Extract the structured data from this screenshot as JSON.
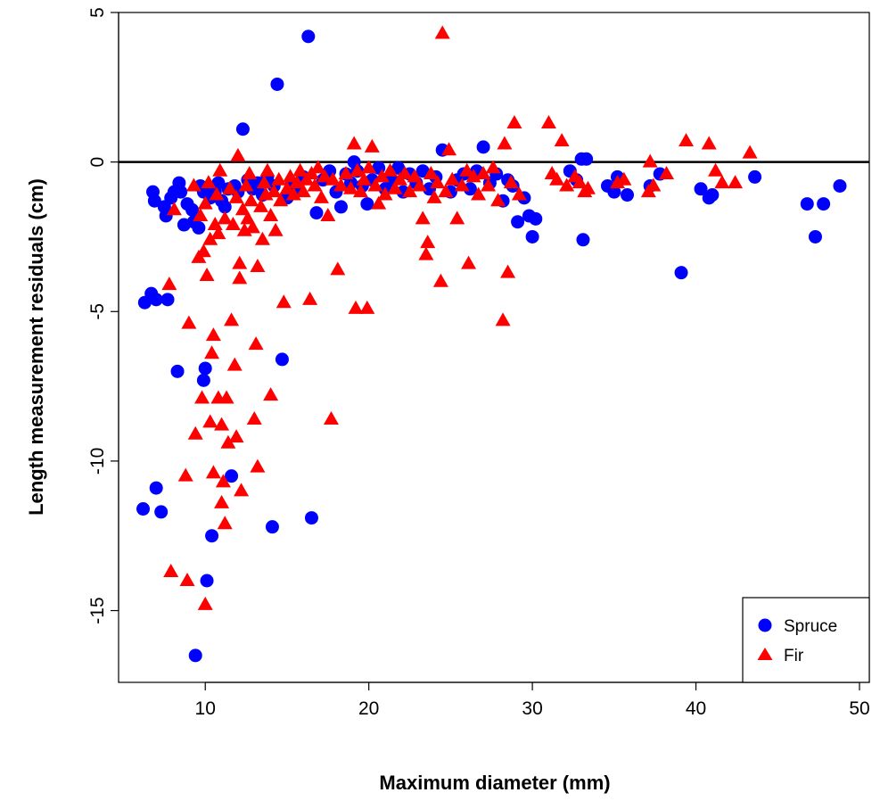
{
  "chart_data": {
    "type": "scatter",
    "xlabel": "Maximum diameter (mm)",
    "ylabel": "Length measurement residuals (cm)",
    "xlim": [
      4.7,
      50.6
    ],
    "ylim": [
      -17.4,
      5.0
    ],
    "xticks": [
      10,
      20,
      30,
      40,
      50
    ],
    "yticks": [
      5,
      0,
      -5,
      -10,
      -15
    ],
    "xtick_labels": [
      "10",
      "20",
      "30",
      "40",
      "50"
    ],
    "ytick_labels": [
      "5",
      "0",
      "-5",
      "-10",
      "-15"
    ],
    "reference_line": {
      "y": 0,
      "color": "#000000"
    },
    "legend": {
      "position": "bottom-right"
    },
    "series": [
      {
        "name": "Spruce",
        "marker": "circle",
        "color": "#0000ff",
        "points": [
          [
            6.2,
            -11.6
          ],
          [
            6.3,
            -4.7
          ],
          [
            6.7,
            -4.4
          ],
          [
            6.8,
            -1.0
          ],
          [
            6.9,
            -1.3
          ],
          [
            7.0,
            -4.6
          ],
          [
            7.0,
            -10.9
          ],
          [
            7.3,
            -11.7
          ],
          [
            7.5,
            -1.5
          ],
          [
            7.6,
            -1.8
          ],
          [
            7.7,
            -4.6
          ],
          [
            7.9,
            -1.2
          ],
          [
            8.1,
            -1.0
          ],
          [
            8.3,
            -7.0
          ],
          [
            8.4,
            -0.7
          ],
          [
            8.5,
            -1.0
          ],
          [
            8.7,
            -2.1
          ],
          [
            8.9,
            -1.4
          ],
          [
            9.2,
            -1.6
          ],
          [
            9.3,
            -2.0
          ],
          [
            9.4,
            -16.5
          ],
          [
            9.6,
            -2.2
          ],
          [
            9.7,
            -0.8
          ],
          [
            9.9,
            -1.0
          ],
          [
            9.9,
            -7.3
          ],
          [
            10.0,
            -6.9
          ],
          [
            10.1,
            -14.0
          ],
          [
            10.3,
            -1.2
          ],
          [
            10.4,
            -12.5
          ],
          [
            10.6,
            -1.0
          ],
          [
            10.8,
            -0.7
          ],
          [
            11.0,
            -1.3
          ],
          [
            11.2,
            -1.5
          ],
          [
            11.4,
            -0.9
          ],
          [
            11.6,
            -10.5
          ],
          [
            11.8,
            -0.8
          ],
          [
            12.0,
            -1.0
          ],
          [
            12.3,
            1.1
          ],
          [
            12.6,
            -0.6
          ],
          [
            12.9,
            -0.9
          ],
          [
            13.2,
            -0.7
          ],
          [
            13.5,
            -1.1
          ],
          [
            13.8,
            -0.5
          ],
          [
            14.1,
            -12.2
          ],
          [
            14.2,
            -0.8
          ],
          [
            14.4,
            2.6
          ],
          [
            14.7,
            -6.6
          ],
          [
            15.0,
            -1.2
          ],
          [
            15.3,
            -0.7
          ],
          [
            15.7,
            -0.9
          ],
          [
            16.0,
            -0.5
          ],
          [
            16.3,
            4.2
          ],
          [
            16.5,
            -11.9
          ],
          [
            16.8,
            -1.7
          ],
          [
            17.2,
            -0.6
          ],
          [
            17.6,
            -0.3
          ],
          [
            18.0,
            -1.0
          ],
          [
            18.3,
            -1.5
          ],
          [
            18.6,
            -0.4
          ],
          [
            18.9,
            -0.7
          ],
          [
            19.1,
            0.0
          ],
          [
            19.3,
            -0.3
          ],
          [
            19.6,
            -0.8
          ],
          [
            19.9,
            -1.4
          ],
          [
            20.2,
            -0.6
          ],
          [
            20.6,
            -0.2
          ],
          [
            21.0,
            -0.9
          ],
          [
            21.4,
            -0.6
          ],
          [
            21.8,
            -0.2
          ],
          [
            22.1,
            -1.0
          ],
          [
            22.5,
            -0.4
          ],
          [
            22.9,
            -0.7
          ],
          [
            23.3,
            -0.3
          ],
          [
            23.7,
            -0.9
          ],
          [
            24.1,
            -0.5
          ],
          [
            24.5,
            0.4
          ],
          [
            25.0,
            -1.0
          ],
          [
            25.4,
            -0.6
          ],
          [
            25.8,
            -0.4
          ],
          [
            26.2,
            -0.9
          ],
          [
            26.6,
            -0.3
          ],
          [
            27.0,
            0.5
          ],
          [
            27.4,
            -0.7
          ],
          [
            27.8,
            -0.4
          ],
          [
            28.2,
            -1.3
          ],
          [
            28.5,
            -0.6
          ],
          [
            28.8,
            -0.8
          ],
          [
            29.1,
            -2.0
          ],
          [
            29.5,
            -1.2
          ],
          [
            29.8,
            -1.8
          ],
          [
            30.0,
            -2.5
          ],
          [
            30.2,
            -1.9
          ],
          [
            32.3,
            -0.3
          ],
          [
            32.7,
            -0.6
          ],
          [
            33.0,
            0.1
          ],
          [
            33.1,
            -2.6
          ],
          [
            33.3,
            0.1
          ],
          [
            34.6,
            -0.8
          ],
          [
            35.0,
            -1.0
          ],
          [
            35.2,
            -0.5
          ],
          [
            35.8,
            -1.1
          ],
          [
            37.2,
            -0.8
          ],
          [
            37.8,
            -0.4
          ],
          [
            39.1,
            -3.7
          ],
          [
            40.3,
            -0.9
          ],
          [
            40.8,
            -1.2
          ],
          [
            41.0,
            -1.1
          ],
          [
            43.6,
            -0.5
          ],
          [
            46.8,
            -1.4
          ],
          [
            47.3,
            -2.5
          ],
          [
            47.8,
            -1.4
          ],
          [
            48.8,
            -0.8
          ]
        ]
      },
      {
        "name": "Fir",
        "marker": "triangle",
        "color": "#ff0000",
        "points": [
          [
            7.8,
            -4.1
          ],
          [
            7.9,
            -13.7
          ],
          [
            8.1,
            -1.6
          ],
          [
            8.8,
            -10.5
          ],
          [
            8.9,
            -14.0
          ],
          [
            9.0,
            -5.4
          ],
          [
            9.3,
            -0.8
          ],
          [
            9.4,
            -9.1
          ],
          [
            9.6,
            -3.2
          ],
          [
            9.7,
            -1.8
          ],
          [
            9.8,
            -7.9
          ],
          [
            9.9,
            -3.0
          ],
          [
            10.0,
            -1.4
          ],
          [
            10.0,
            -14.8
          ],
          [
            10.1,
            -3.8
          ],
          [
            10.2,
            -0.7
          ],
          [
            10.3,
            -8.7
          ],
          [
            10.3,
            -2.6
          ],
          [
            10.4,
            -6.4
          ],
          [
            10.5,
            -10.4
          ],
          [
            10.5,
            -5.8
          ],
          [
            10.6,
            -2.1
          ],
          [
            10.7,
            -1.1
          ],
          [
            10.8,
            -2.4
          ],
          [
            10.8,
            -7.9
          ],
          [
            10.9,
            -0.3
          ],
          [
            11.0,
            -11.4
          ],
          [
            11.0,
            -8.8
          ],
          [
            11.1,
            -10.7
          ],
          [
            11.2,
            -1.9
          ],
          [
            11.2,
            -12.1
          ],
          [
            11.3,
            -7.9
          ],
          [
            11.4,
            -9.4
          ],
          [
            11.5,
            -0.9
          ],
          [
            11.6,
            -5.3
          ],
          [
            11.7,
            -2.1
          ],
          [
            11.8,
            -6.8
          ],
          [
            11.9,
            -1.2
          ],
          [
            11.9,
            -9.2
          ],
          [
            12.0,
            0.2
          ],
          [
            12.1,
            -3.4
          ],
          [
            12.1,
            -3.9
          ],
          [
            12.2,
            -11.0
          ],
          [
            12.3,
            -1.6
          ],
          [
            12.4,
            -2.3
          ],
          [
            12.5,
            -0.8
          ],
          [
            12.6,
            -1.9
          ],
          [
            12.7,
            -0.4
          ],
          [
            12.8,
            -1.3
          ],
          [
            12.9,
            -2.2
          ],
          [
            13.0,
            -8.6
          ],
          [
            13.1,
            -6.1
          ],
          [
            13.2,
            -10.2
          ],
          [
            13.2,
            -3.5
          ],
          [
            13.4,
            -1.5
          ],
          [
            13.5,
            -2.6
          ],
          [
            13.6,
            -0.7
          ],
          [
            13.7,
            -1.1
          ],
          [
            13.8,
            -0.3
          ],
          [
            14.0,
            -1.8
          ],
          [
            14.0,
            -7.8
          ],
          [
            14.2,
            -1.0
          ],
          [
            14.3,
            -2.3
          ],
          [
            14.5,
            -0.6
          ],
          [
            14.6,
            -1.3
          ],
          [
            14.8,
            -4.7
          ],
          [
            15.0,
            -0.9
          ],
          [
            15.2,
            -0.5
          ],
          [
            15.4,
            -1.1
          ],
          [
            15.6,
            -0.7
          ],
          [
            15.8,
            -0.3
          ],
          [
            16.0,
            -1.0
          ],
          [
            16.2,
            -0.6
          ],
          [
            16.4,
            -4.6
          ],
          [
            16.5,
            -0.4
          ],
          [
            16.7,
            -0.8
          ],
          [
            16.9,
            -0.2
          ],
          [
            17.1,
            -1.2
          ],
          [
            17.3,
            -0.5
          ],
          [
            17.5,
            -1.8
          ],
          [
            17.7,
            -8.6
          ],
          [
            17.8,
            -0.6
          ],
          [
            18.1,
            -3.6
          ],
          [
            18.3,
            -0.8
          ],
          [
            18.6,
            -0.4
          ],
          [
            18.9,
            -0.9
          ],
          [
            19.1,
            0.6
          ],
          [
            19.2,
            -4.9
          ],
          [
            19.3,
            -0.3
          ],
          [
            19.5,
            -1.0
          ],
          [
            19.7,
            -0.6
          ],
          [
            19.9,
            -4.9
          ],
          [
            20.0,
            -0.2
          ],
          [
            20.2,
            0.5
          ],
          [
            20.4,
            -0.8
          ],
          [
            20.6,
            -1.4
          ],
          [
            20.8,
            -0.5
          ],
          [
            21.0,
            -1.1
          ],
          [
            21.3,
            -0.3
          ],
          [
            21.6,
            -0.9
          ],
          [
            21.9,
            -0.6
          ],
          [
            22.2,
            -0.4
          ],
          [
            22.5,
            -1.0
          ],
          [
            22.8,
            -0.5
          ],
          [
            23.1,
            -0.8
          ],
          [
            23.3,
            -1.9
          ],
          [
            23.5,
            -3.1
          ],
          [
            23.6,
            -2.7
          ],
          [
            23.8,
            -0.4
          ],
          [
            24.0,
            -1.2
          ],
          [
            24.2,
            -0.7
          ],
          [
            24.4,
            -4.0
          ],
          [
            24.5,
            4.3
          ],
          [
            24.7,
            -1.0
          ],
          [
            24.9,
            0.4
          ],
          [
            25.1,
            -0.6
          ],
          [
            25.4,
            -1.9
          ],
          [
            25.7,
            -0.8
          ],
          [
            26.0,
            -0.3
          ],
          [
            26.1,
            -3.4
          ],
          [
            26.4,
            -0.5
          ],
          [
            26.7,
            -1.1
          ],
          [
            27.0,
            -0.4
          ],
          [
            27.3,
            -0.8
          ],
          [
            27.6,
            -0.2
          ],
          [
            27.9,
            -1.3
          ],
          [
            28.2,
            -5.3
          ],
          [
            28.3,
            0.6
          ],
          [
            28.5,
            -3.7
          ],
          [
            28.7,
            -0.7
          ],
          [
            28.9,
            1.3
          ],
          [
            29.2,
            -1.1
          ],
          [
            31.0,
            1.3
          ],
          [
            31.2,
            -0.4
          ],
          [
            31.5,
            -0.6
          ],
          [
            31.8,
            0.7
          ],
          [
            32.1,
            -0.8
          ],
          [
            32.6,
            -0.5
          ],
          [
            32.9,
            -0.7
          ],
          [
            33.2,
            -1.0
          ],
          [
            33.4,
            -0.9
          ],
          [
            35.2,
            -0.7
          ],
          [
            35.6,
            -0.6
          ],
          [
            37.1,
            -1.0
          ],
          [
            37.2,
            0.0
          ],
          [
            37.4,
            -0.8
          ],
          [
            38.2,
            -0.4
          ],
          [
            39.4,
            0.7
          ],
          [
            40.8,
            0.6
          ],
          [
            41.2,
            -0.3
          ],
          [
            41.6,
            -0.7
          ],
          [
            42.4,
            -0.7
          ],
          [
            43.3,
            0.3
          ]
        ]
      }
    ]
  }
}
